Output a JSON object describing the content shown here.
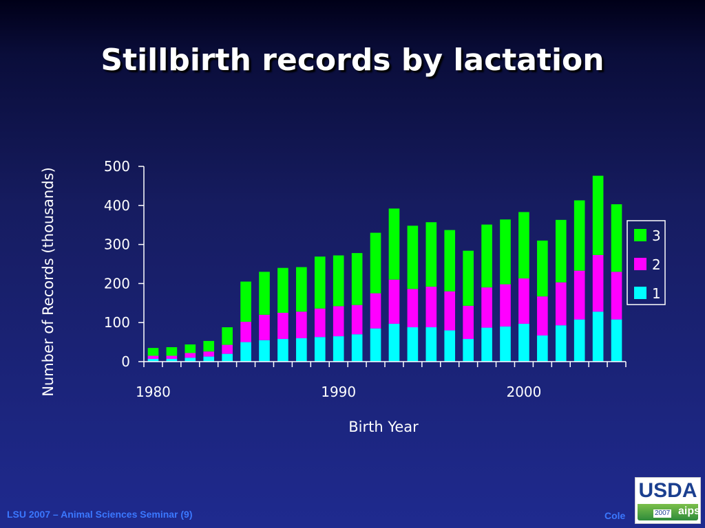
{
  "slide": {
    "title": "Stillbirth records by lactation",
    "footer_left": "LSU 2007 – Animal Sciences Seminar (9)",
    "footer_right": "Cole",
    "logo_text": "USDA",
    "logo_year": "2007",
    "logo_sub": "aips"
  },
  "chart_data": {
    "type": "bar",
    "stacked": true,
    "title": "",
    "xlabel": "Birth Year",
    "ylabel": "Number of Records (thousands)",
    "ylim": [
      0,
      500
    ],
    "yticks": [
      "0",
      "100",
      "200",
      "300",
      "400",
      "500"
    ],
    "xtick_labels": [
      "1980",
      "1990",
      "2000"
    ],
    "x": [
      1980,
      1981,
      1982,
      1983,
      1984,
      1985,
      1986,
      1987,
      1988,
      1989,
      1990,
      1991,
      1992,
      1993,
      1994,
      1995,
      1996,
      1997,
      1998,
      1999,
      2000,
      2001,
      2002,
      2003,
      2004,
      2005
    ],
    "legend_position": "right",
    "series": [
      {
        "name": "1",
        "color": "#00ffff",
        "values": [
          7,
          7,
          10,
          13,
          20,
          50,
          55,
          58,
          60,
          63,
          65,
          70,
          85,
          97,
          88,
          88,
          80,
          58,
          87,
          90,
          97,
          67,
          93,
          108,
          128,
          108
        ]
      },
      {
        "name": "2",
        "color": "#ff00ff",
        "values": [
          8,
          8,
          12,
          13,
          23,
          52,
          65,
          67,
          68,
          73,
          77,
          75,
          90,
          113,
          98,
          104,
          100,
          85,
          103,
          108,
          116,
          100,
          110,
          125,
          145,
          122
        ]
      },
      {
        "name": "3",
        "color": "#00ff00",
        "values": [
          20,
          22,
          22,
          27,
          45,
          103,
          110,
          115,
          114,
          133,
          130,
          133,
          155,
          182,
          162,
          165,
          157,
          141,
          161,
          166,
          170,
          143,
          160,
          180,
          203,
          173
        ]
      }
    ]
  }
}
